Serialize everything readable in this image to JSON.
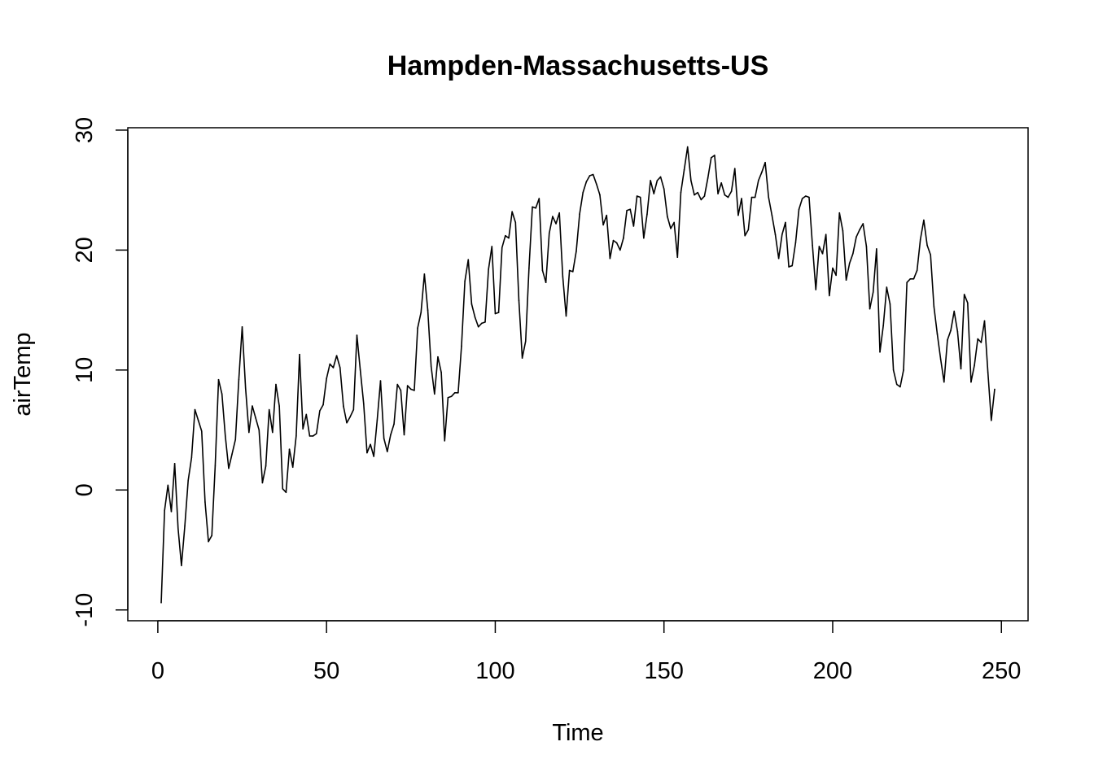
{
  "chart_data": {
    "type": "line",
    "title": "Hampden-Massachusetts-US",
    "xlabel": "Time",
    "ylabel": "airTemp",
    "xlim": [
      -8.9,
      257.9
    ],
    "ylim": [
      -10.9,
      30.2
    ],
    "x_ticks": [
      0,
      50,
      100,
      150,
      200,
      250
    ],
    "y_ticks": [
      -10,
      0,
      10,
      20,
      30
    ],
    "grid": false,
    "legend": "none",
    "series": [
      {
        "color": "#000000",
        "x_start": 1,
        "values": [
          -9.4,
          -1.7,
          0.4,
          -1.8,
          2.2,
          -3.2,
          -6.3,
          -3.0,
          0.8,
          2.7,
          6.7,
          5.8,
          4.9,
          -1.0,
          -4.3,
          -3.8,
          2.0,
          9.2,
          8.0,
          4.5,
          1.8,
          3.0,
          4.2,
          9.2,
          13.6,
          8.5,
          4.8,
          7.0,
          6.0,
          5.0,
          0.6,
          2.0,
          6.7,
          4.8,
          8.8,
          7.0,
          0.1,
          -0.2,
          3.4,
          1.9,
          4.5,
          11.3,
          5.1,
          6.3,
          4.5,
          4.5,
          4.7,
          6.6,
          7.1,
          9.3,
          10.5,
          10.2,
          11.2,
          10.2,
          7.0,
          5.6,
          6.1,
          6.7,
          12.9,
          10.0,
          7.2,
          3.1,
          3.8,
          2.8,
          5.8,
          9.1,
          4.3,
          3.2,
          4.6,
          5.5,
          8.8,
          8.3,
          4.6,
          8.7,
          8.4,
          8.3,
          13.5,
          14.8,
          18.0,
          15.0,
          10.3,
          8.0,
          11.1,
          9.8,
          4.1,
          7.7,
          7.8,
          8.1,
          8.1,
          12.0,
          17.4,
          19.2,
          15.5,
          14.4,
          13.6,
          13.9,
          14.0,
          18.4,
          20.3,
          14.7,
          14.8,
          20.2,
          21.2,
          21.0,
          23.2,
          22.3,
          15.8,
          11.0,
          12.4,
          18.5,
          23.6,
          23.5,
          24.3,
          18.3,
          17.3,
          21.4,
          22.8,
          22.2,
          23.1,
          17.8,
          14.5,
          18.3,
          18.2,
          19.9,
          23.0,
          24.8,
          25.7,
          26.2,
          26.3,
          25.5,
          24.6,
          22.1,
          22.9,
          19.3,
          20.8,
          20.6,
          20.0,
          21.0,
          23.3,
          23.4,
          22.0,
          24.5,
          24.4,
          21.0,
          23.0,
          25.8,
          24.7,
          25.8,
          26.1,
          25.1,
          22.8,
          21.8,
          22.3,
          19.4,
          24.8,
          26.7,
          28.6,
          25.8,
          24.6,
          24.8,
          24.2,
          24.5,
          26.0,
          27.7,
          27.9,
          24.7,
          25.6,
          24.6,
          24.4,
          24.9,
          26.8,
          22.9,
          24.3,
          21.2,
          21.7,
          24.4,
          24.4,
          25.8,
          26.5,
          27.3,
          24.4,
          22.9,
          21.3,
          19.3,
          21.3,
          22.3,
          18.6,
          18.7,
          20.6,
          23.4,
          24.3,
          24.5,
          24.4,
          20.4,
          16.7,
          20.3,
          19.7,
          21.3,
          16.2,
          18.5,
          17.9,
          23.1,
          21.6,
          17.5,
          18.9,
          19.7,
          21.1,
          21.7,
          22.2,
          20.3,
          15.1,
          16.5,
          20.1,
          11.5,
          13.7,
          16.9,
          15.5,
          10.0,
          8.8,
          8.6,
          10.0,
          17.3,
          17.6,
          17.6,
          18.3,
          20.9,
          22.5,
          20.4,
          19.6,
          15.3,
          13.0,
          10.9,
          9.0,
          12.5,
          13.3,
          14.9,
          13.2,
          10.1,
          16.3,
          15.6,
          9.0,
          10.4,
          12.6,
          12.3,
          14.1,
          9.8,
          5.8,
          8.4
        ]
      }
    ]
  }
}
